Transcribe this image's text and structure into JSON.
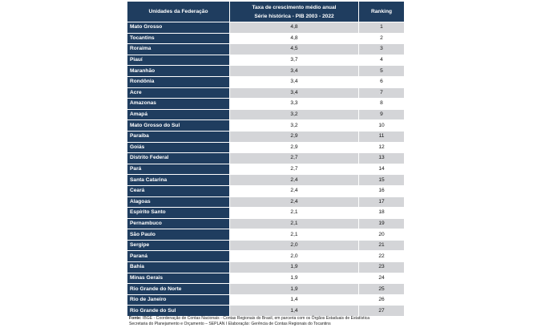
{
  "table": {
    "headers": {
      "uf": "Unidades da Federação",
      "taxa_line1": "Taxa de crescimento médio anual",
      "taxa_line2": "Série histórica - PIB 2003 - 2022",
      "ranking": "Ranking"
    },
    "rows": [
      {
        "uf": "Mato Grosso",
        "taxa": "4,8",
        "rank": "1"
      },
      {
        "uf": "Tocantins",
        "taxa": "4,8",
        "rank": "2"
      },
      {
        "uf": "Roraima",
        "taxa": "4,5",
        "rank": "3"
      },
      {
        "uf": "Piauí",
        "taxa": "3,7",
        "rank": "4"
      },
      {
        "uf": "Maranhão",
        "taxa": "3,4",
        "rank": "5"
      },
      {
        "uf": "Rondônia",
        "taxa": "3,4",
        "rank": "6"
      },
      {
        "uf": "Acre",
        "taxa": "3,4",
        "rank": "7"
      },
      {
        "uf": "Amazonas",
        "taxa": "3,3",
        "rank": "8"
      },
      {
        "uf": "Amapá",
        "taxa": "3,2",
        "rank": "9"
      },
      {
        "uf": "Mato Grosso do Sul",
        "taxa": "3,2",
        "rank": "10"
      },
      {
        "uf": "Paraíba",
        "taxa": "2,9",
        "rank": "11"
      },
      {
        "uf": "Goiás",
        "taxa": "2,9",
        "rank": "12"
      },
      {
        "uf": "Distrito Federal",
        "taxa": "2,7",
        "rank": "13"
      },
      {
        "uf": "Pará",
        "taxa": "2,7",
        "rank": "14"
      },
      {
        "uf": "Santa Catarina",
        "taxa": "2,4",
        "rank": "15"
      },
      {
        "uf": "Ceará",
        "taxa": "2,4",
        "rank": "16"
      },
      {
        "uf": "Alagoas",
        "taxa": "2,4",
        "rank": "17"
      },
      {
        "uf": "Espírito Santo",
        "taxa": "2,1",
        "rank": "18"
      },
      {
        "uf": "Pernambuco",
        "taxa": "2,1",
        "rank": "19"
      },
      {
        "uf": "São Paulo",
        "taxa": "2,1",
        "rank": "20"
      },
      {
        "uf": "Sergipe",
        "taxa": "2,0",
        "rank": "21"
      },
      {
        "uf": "Paraná",
        "taxa": "2,0",
        "rank": "22"
      },
      {
        "uf": "Bahia",
        "taxa": "1,9",
        "rank": "23"
      },
      {
        "uf": "Minas Gerais",
        "taxa": "1,9",
        "rank": "24"
      },
      {
        "uf": "Rio Grande do Norte",
        "taxa": "1,9",
        "rank": "25"
      },
      {
        "uf": "Rio de Janeiro",
        "taxa": "1,4",
        "rank": "26"
      },
      {
        "uf": "Rio Grande do Sul",
        "taxa": "1,4",
        "rank": "27"
      }
    ]
  },
  "source": {
    "label": "Fonte:",
    "line1": " IBGE - Coordenação de Contas Nacionais - Contas Regionais do Brasil, em parceria com os Órgãos Estaduais de Estatística",
    "line2": "Secretaria do Planejamento e Orçamento – SEPLAN I Elaboração: Gerência de Contas Regionais do Tocantins"
  },
  "colors": {
    "header_bg": "#1f3d5f",
    "stripe": "#d4d5d8"
  }
}
